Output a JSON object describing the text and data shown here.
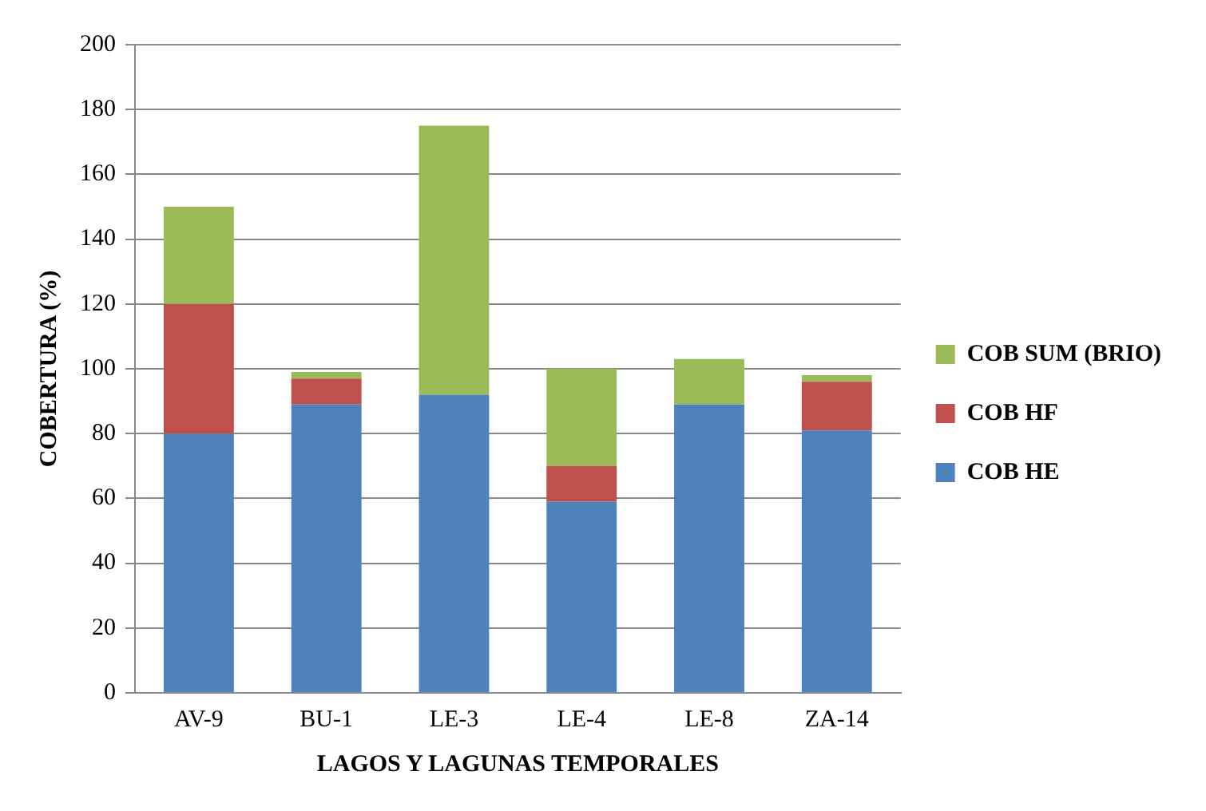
{
  "chart_data": {
    "type": "bar",
    "stacked": true,
    "xlabel": "LAGOS Y LAGUNAS TEMPORALES",
    "ylabel": "COBERTURA (%)",
    "categories": [
      "AV-9",
      "BU-1",
      "LE-3",
      "LE-4",
      "LE-8",
      "ZA-14"
    ],
    "series": [
      {
        "name": "COB HE",
        "color": "#4f81bd",
        "values": [
          80,
          89,
          92,
          59,
          89,
          81
        ]
      },
      {
        "name": "COB HF",
        "color": "#c0504d",
        "values": [
          40,
          8,
          0,
          11,
          0,
          15
        ]
      },
      {
        "name": "COB SUM (BRIO)",
        "color": "#9bbb59",
        "values": [
          30,
          2,
          83,
          30,
          14,
          2
        ]
      }
    ],
    "ylim": [
      0,
      200
    ],
    "yticks": [
      0,
      20,
      40,
      60,
      80,
      100,
      120,
      140,
      160,
      180,
      200
    ],
    "grid": "y",
    "legend": "right"
  }
}
